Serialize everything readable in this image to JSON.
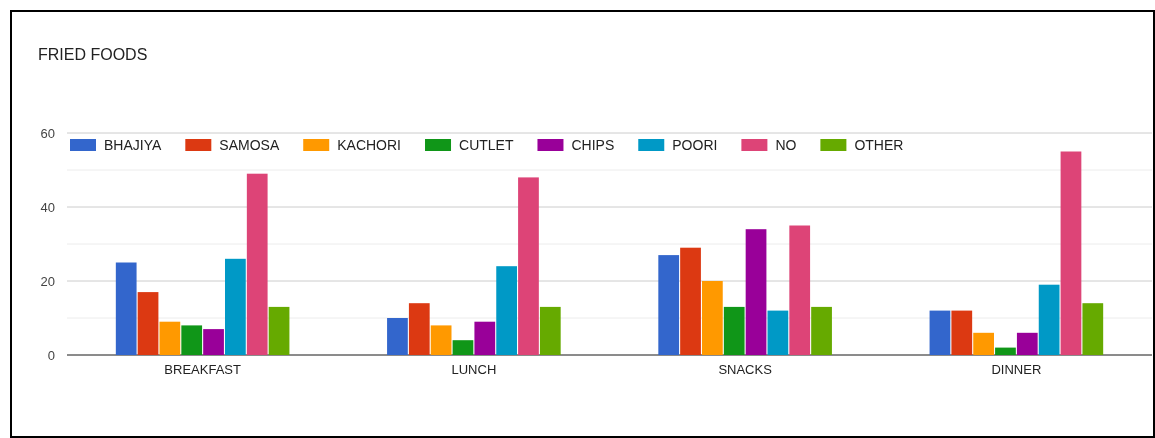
{
  "chart_data": {
    "type": "bar",
    "title": "FRIED FOODS",
    "categories": [
      "BREAKFAST",
      "LUNCH",
      "SNACKS",
      "DINNER"
    ],
    "series": [
      {
        "name": "BHAJIYA",
        "color": "#3366cc",
        "values": [
          25,
          10,
          27,
          12
        ]
      },
      {
        "name": "SAMOSA",
        "color": "#dc3912",
        "values": [
          17,
          14,
          29,
          12
        ]
      },
      {
        "name": "KACHORI",
        "color": "#ff9900",
        "values": [
          9,
          8,
          20,
          6
        ]
      },
      {
        "name": "CUTLET",
        "color": "#109618",
        "values": [
          8,
          4,
          13,
          2
        ]
      },
      {
        "name": "CHIPS",
        "color": "#990099",
        "values": [
          7,
          9,
          34,
          6
        ]
      },
      {
        "name": "POORI",
        "color": "#0099c6",
        "values": [
          26,
          24,
          12,
          19
        ]
      },
      {
        "name": "NO",
        "color": "#dd4477",
        "values": [
          49,
          48,
          35,
          55
        ]
      },
      {
        "name": "OTHER",
        "color": "#66aa00",
        "values": [
          13,
          13,
          13,
          14
        ]
      }
    ],
    "ylim": [
      0,
      60
    ],
    "yticks": [
      0,
      {
        "value": 10,
        "label": null
      },
      20,
      {
        "value": 30,
        "label": null
      },
      40,
      {
        "value": 50,
        "label": null
      },
      60
    ],
    "grid": "y",
    "legend": "top left"
  }
}
